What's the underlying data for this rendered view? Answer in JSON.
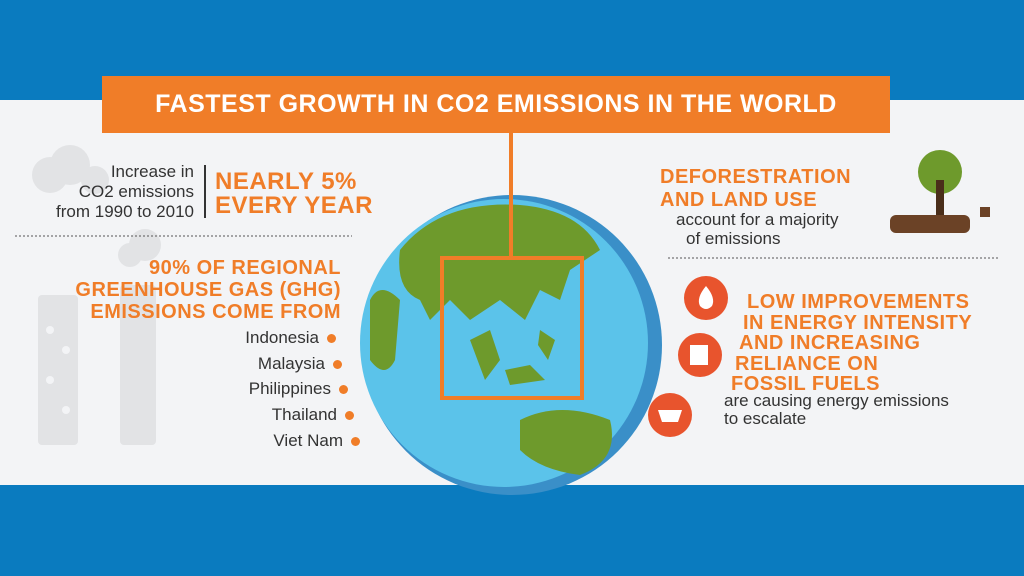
{
  "title": "FASTEST GROWTH IN CO2 EMISSIONS IN THE WORLD",
  "growth": {
    "label_lines": [
      "Increase in",
      "CO2 emissions",
      "from 1990 to 2010"
    ],
    "value_lines": [
      "NEARLY 5%",
      "EVERY YEAR"
    ]
  },
  "ghg": {
    "heading_lines": [
      "90% OF REGIONAL",
      "GREENHOUSE GAS (GHG)",
      "EMISSIONS COME FROM"
    ],
    "countries": [
      "Indonesia",
      "Malaysia",
      "Philippines",
      "Thailand",
      "Viet Nam"
    ]
  },
  "deforestation": {
    "heading_lines": [
      "DEFORESTRATION",
      "AND LAND USE"
    ],
    "text_lines": [
      "account for a majority",
      "of emissions"
    ]
  },
  "energy": {
    "heading_lines": [
      "LOW IMPROVEMENTS",
      "IN ENERGY INTENSITY",
      "AND INCREASING",
      "RELIANCE ON",
      "FOSSIL FUELS"
    ],
    "text_lines": [
      "are causing energy emissions",
      "to escalate"
    ]
  }
}
